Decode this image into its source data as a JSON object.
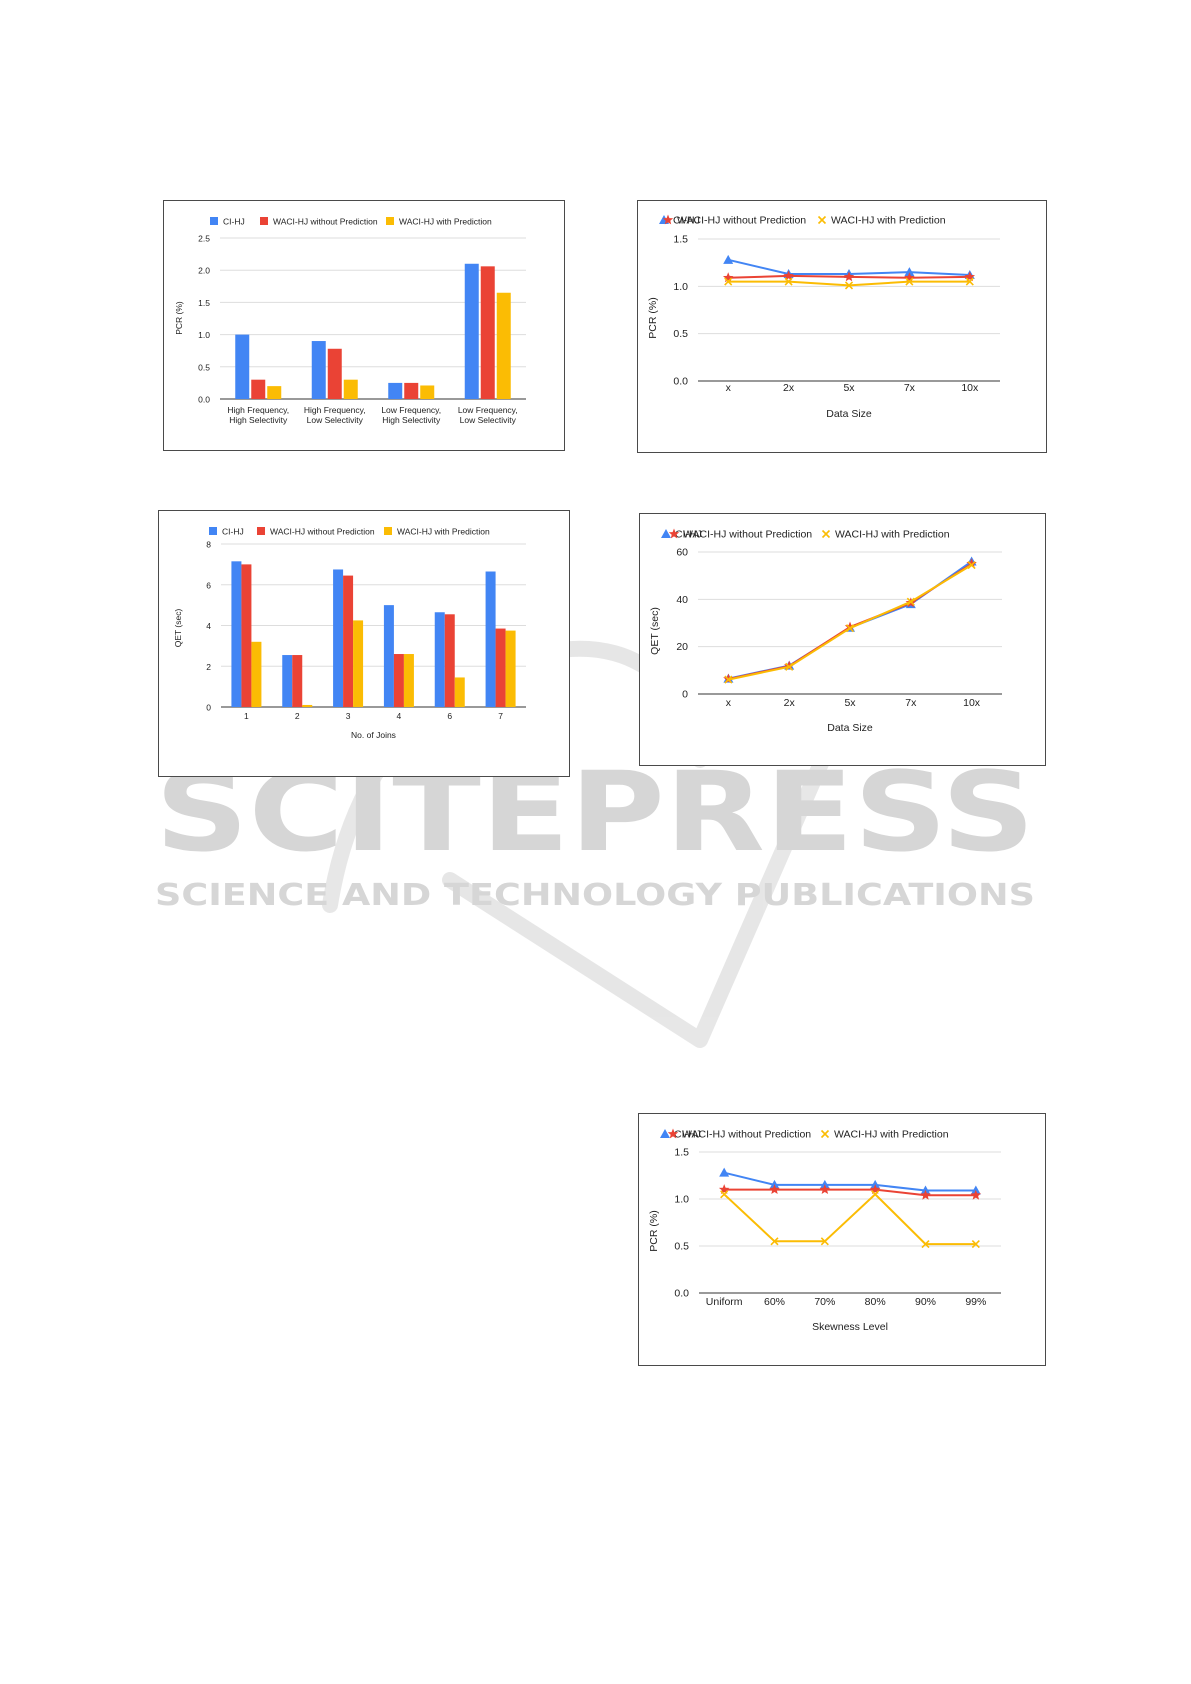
{
  "chart_data": [
    {
      "id": "pcr-bar",
      "type": "bar",
      "categories": [
        [
          "High Frequency,",
          "High Selectivity"
        ],
        [
          "High Frequency,",
          "Low Selectivity"
        ],
        [
          "Low Frequency,",
          "High Selectivity"
        ],
        [
          "Low Frequency,",
          "Low Selectivity"
        ]
      ],
      "series": [
        {
          "name": "CI-HJ",
          "color": "#4285f4",
          "values": [
            1.0,
            0.9,
            0.25,
            2.1
          ]
        },
        {
          "name": "WACI-HJ without Prediction",
          "color": "#ea4335",
          "values": [
            0.3,
            0.78,
            0.25,
            2.06
          ]
        },
        {
          "name": "WACI-HJ with Prediction",
          "color": "#fbbc04",
          "values": [
            0.2,
            0.3,
            0.21,
            1.65
          ]
        }
      ],
      "xlabel": "",
      "ylabel": "PCR (%)",
      "ylim": [
        0,
        2.5
      ],
      "yticks": [
        "0.0",
        "0.5",
        "1.0",
        "1.5",
        "2.0",
        "2.5"
      ],
      "legend": "top",
      "grid": true
    },
    {
      "id": "pcr-datasize",
      "type": "line",
      "categories": [
        "x",
        "2x",
        "5x",
        "7x",
        "10x"
      ],
      "series": [
        {
          "name": "CI-HJ",
          "color": "#4285f4",
          "marker": "triangle",
          "values": [
            1.28,
            1.13,
            1.13,
            1.15,
            1.12
          ]
        },
        {
          "name": "WACI-HJ without Prediction",
          "color": "#ea4335",
          "marker": "star",
          "values": [
            1.09,
            1.11,
            1.1,
            1.09,
            1.1
          ]
        },
        {
          "name": "WACI-HJ with Prediction",
          "color": "#fbbc04",
          "marker": "x",
          "values": [
            1.05,
            1.05,
            1.01,
            1.05,
            1.05
          ]
        }
      ],
      "xlabel": "Data Size",
      "ylabel": "PCR (%)",
      "ylim": [
        0,
        1.5
      ],
      "yticks": [
        "0.0",
        "0.5",
        "1.0",
        "1.5"
      ],
      "legend": "top",
      "grid": true
    },
    {
      "id": "qet-joins",
      "type": "bar",
      "categories": [
        [
          "1"
        ],
        [
          "2"
        ],
        [
          "3"
        ],
        [
          "4"
        ],
        [
          "6"
        ],
        [
          "7"
        ]
      ],
      "series": [
        {
          "name": "CI-HJ",
          "color": "#4285f4",
          "values": [
            7.15,
            2.55,
            6.75,
            5.0,
            4.65,
            6.65
          ]
        },
        {
          "name": "WACI-HJ without Prediction",
          "color": "#ea4335",
          "values": [
            7.0,
            2.55,
            6.45,
            2.6,
            4.55,
            3.85
          ]
        },
        {
          "name": "WACI-HJ with Prediction",
          "color": "#fbbc04",
          "values": [
            3.2,
            0.1,
            4.25,
            2.6,
            1.45,
            3.75
          ]
        }
      ],
      "xlabel": "No. of Joins",
      "ylabel": "QET (sec)",
      "ylim": [
        0,
        8
      ],
      "yticks": [
        "0",
        "2",
        "4",
        "6",
        "8"
      ],
      "legend": "top",
      "grid": true
    },
    {
      "id": "qet-datasize",
      "type": "line",
      "categories": [
        "x",
        "2x",
        "5x",
        "7x",
        "10x"
      ],
      "series": [
        {
          "name": "CI-HJ",
          "color": "#4285f4",
          "marker": "triangle",
          "values": [
            6.5,
            12,
            28,
            38,
            56
          ]
        },
        {
          "name": "WACI-HJ without Prediction",
          "color": "#ea4335",
          "marker": "star",
          "values": [
            6.3,
            11.8,
            28.3,
            38.5,
            55
          ]
        },
        {
          "name": "WACI-HJ with Prediction",
          "color": "#fbbc04",
          "marker": "x",
          "values": [
            6.1,
            11.5,
            27.8,
            39,
            54.5
          ]
        }
      ],
      "xlabel": "Data Size",
      "ylabel": "QET (sec)",
      "ylim": [
        0,
        60
      ],
      "yticks": [
        "0",
        "20",
        "40",
        "60"
      ],
      "legend": "top",
      "grid": true
    },
    {
      "id": "pcr-skewness",
      "type": "line",
      "categories": [
        "Uniform",
        "60%",
        "70%",
        "80%",
        "90%",
        "99%"
      ],
      "series": [
        {
          "name": "CI-HJ",
          "color": "#4285f4",
          "marker": "triangle",
          "values": [
            1.28,
            1.15,
            1.15,
            1.15,
            1.09,
            1.09
          ]
        },
        {
          "name": "WACI-HJ without Prediction",
          "color": "#ea4335",
          "marker": "star",
          "values": [
            1.1,
            1.1,
            1.1,
            1.1,
            1.04,
            1.04
          ]
        },
        {
          "name": "WACI-HJ with Prediction",
          "color": "#fbbc04",
          "marker": "x",
          "values": [
            1.05,
            0.55,
            0.55,
            1.05,
            0.52,
            0.52
          ]
        }
      ],
      "xlabel": "Skewness Level",
      "ylabel": "PCR (%)",
      "ylim": [
        0,
        1.5
      ],
      "yticks": [
        "0.0",
        "0.5",
        "1.0",
        "1.5"
      ],
      "legend": "top",
      "grid": true
    }
  ],
  "watermark": {
    "logo_text": "SCITEPRESS",
    "tagline": "SCIENCE AND TECHNOLOGY PUBLICATIONS"
  }
}
